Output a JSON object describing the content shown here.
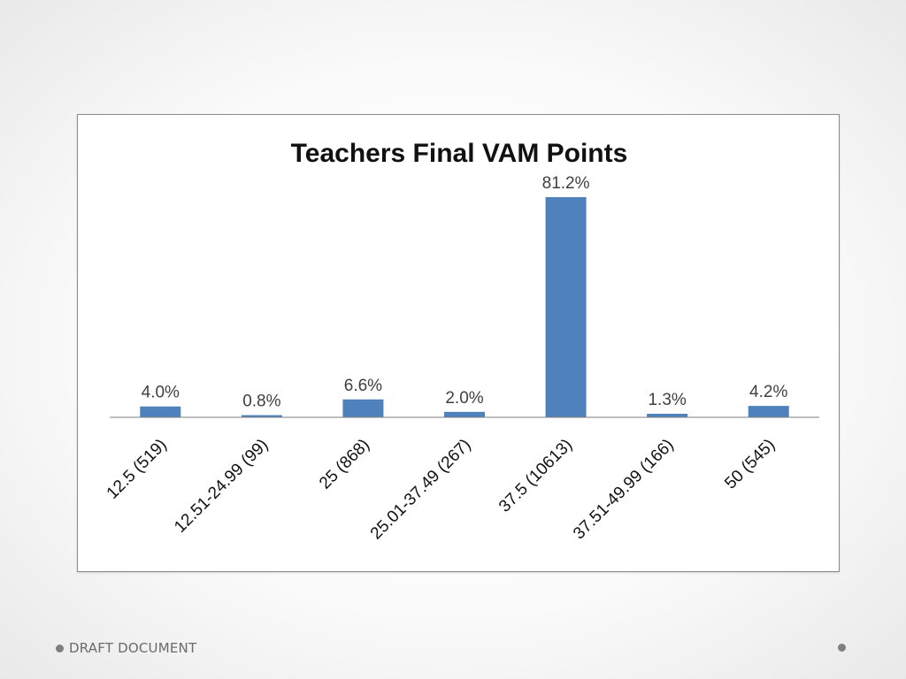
{
  "footer": {
    "text": "DRAFT DOCUMENT"
  },
  "colors": {
    "bar": "#4F81BD",
    "axis": "#7f7f7f"
  },
  "icons": {
    "footer_bullet": "circle-bullet",
    "slide_marker": "circle-bullet"
  },
  "chart_data": {
    "type": "bar",
    "title": "Teachers Final VAM Points",
    "xlabel": "",
    "ylabel": "",
    "ylim": [
      0,
      90
    ],
    "grid": false,
    "legend": "none",
    "categories": [
      "12.5 (519)",
      "12.51-24.99 (99)",
      "25 (868)",
      "25.01-37.49 (267)",
      "37.5 (10613)",
      "37.51-49.99 (166)",
      "50 (545)"
    ],
    "values": [
      4.0,
      0.8,
      6.6,
      2.0,
      81.2,
      1.3,
      4.2
    ],
    "value_labels": [
      "4.0%",
      "0.8%",
      "6.6%",
      "2.0%",
      "81.2%",
      "1.3%",
      "4.2%"
    ]
  }
}
